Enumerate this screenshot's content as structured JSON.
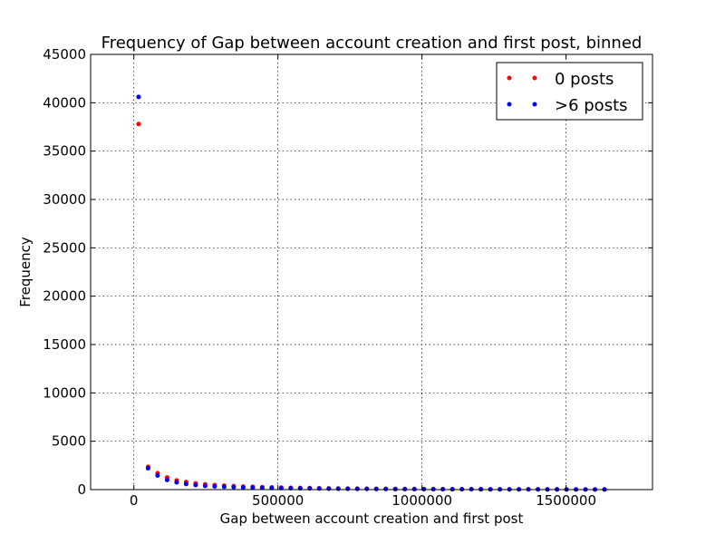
{
  "chart_data": {
    "type": "scatter",
    "title": "Frequency of Gap between account creation and first post, binned",
    "xlabel": "Gap between account creation and first post",
    "ylabel": "Frequency",
    "xlim": [
      -150000,
      1800000
    ],
    "ylim": [
      0,
      45000
    ],
    "xticks": [
      0,
      500000,
      1000000,
      1500000
    ],
    "xtick_labels": [
      "0",
      "500000",
      "1000000",
      "1500000"
    ],
    "yticks": [
      0,
      5000,
      10000,
      15000,
      20000,
      25000,
      30000,
      35000,
      40000,
      45000
    ],
    "ytick_labels": [
      "0",
      "5000",
      "10000",
      "15000",
      "20000",
      "25000",
      "30000",
      "35000",
      "40000",
      "45000"
    ],
    "grid": true,
    "legend_position": "top-right",
    "series": [
      {
        "name": "0 posts",
        "color": "#ff0000",
        "x": [
          16500,
          49500,
          82500,
          115500,
          148500,
          181500,
          214500,
          247500,
          280500,
          313500,
          346500,
          379500,
          412500,
          445500,
          478500,
          511500,
          544500,
          577500,
          610500,
          643500,
          676500,
          709500,
          742500,
          775500,
          808500,
          841500,
          874500,
          907500,
          940500,
          973500,
          1006500,
          1039500,
          1072500,
          1105500,
          1138500,
          1171500,
          1204500,
          1237500,
          1270500,
          1303500,
          1336500,
          1369500,
          1402500,
          1435500,
          1468500,
          1501500,
          1534500,
          1567500,
          1600500,
          1633500
        ],
        "y": [
          37800,
          2350,
          1700,
          1250,
          950,
          780,
          650,
          550,
          470,
          410,
          360,
          320,
          290,
          260,
          235,
          210,
          190,
          175,
          160,
          145,
          130,
          120,
          110,
          100,
          90,
          85,
          80,
          75,
          70,
          65,
          60,
          55,
          52,
          50,
          47,
          45,
          42,
          40,
          38,
          36,
          34,
          32,
          30,
          28,
          27,
          26,
          25,
          24,
          22,
          20
        ]
      },
      {
        "name": ">6 posts",
        "color": "#0000ff",
        "x": [
          16500,
          49500,
          82500,
          115500,
          148500,
          181500,
          214500,
          247500,
          280500,
          313500,
          346500,
          379500,
          412500,
          445500,
          478500,
          511500,
          544500,
          577500,
          610500,
          643500,
          676500,
          709500,
          742500,
          775500,
          808500,
          841500,
          874500,
          907500,
          940500,
          973500,
          1006500,
          1039500,
          1072500,
          1105500,
          1138500,
          1171500,
          1204500,
          1237500,
          1270500,
          1303500,
          1336500,
          1369500,
          1402500,
          1435500,
          1468500,
          1501500,
          1534500,
          1567500,
          1600500,
          1633500
        ],
        "y": [
          40600,
          2200,
          1450,
          1000,
          750,
          580,
          470,
          390,
          330,
          290,
          255,
          225,
          200,
          180,
          165,
          150,
          138,
          126,
          115,
          105,
          96,
          88,
          80,
          74,
          68,
          63,
          58,
          54,
          50,
          47,
          44,
          41,
          38,
          36,
          34,
          32,
          30,
          28,
          26,
          24,
          22,
          21,
          20,
          19,
          18,
          17,
          16,
          15,
          14,
          13
        ]
      }
    ]
  }
}
